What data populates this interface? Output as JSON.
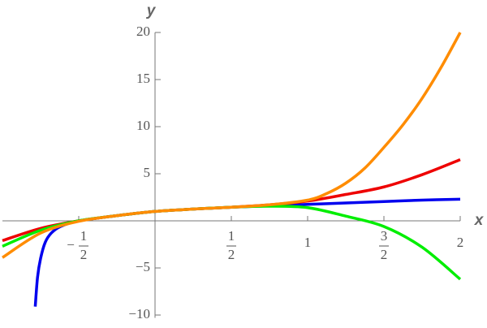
{
  "chart_data": {
    "type": "line",
    "x_label": "x",
    "y_label": "y",
    "xlim": [
      -1,
      2
    ],
    "ylim": [
      -10.3,
      20
    ],
    "xticks": [
      {
        "value": -0.5,
        "label": "-1/2"
      },
      {
        "value": 0.5,
        "label": "1/2"
      },
      1,
      {
        "value": 1.5,
        "label": "3/2"
      },
      2
    ],
    "yticks": [
      -10,
      -5,
      5,
      10,
      15,
      20
    ],
    "series": [
      {
        "color": "#0000ee",
        "x": [
          -0.785,
          -0.77,
          -0.75,
          -0.72,
          -0.68,
          -0.62,
          -0.5,
          -0.25,
          0,
          0.25,
          0.5,
          0.75,
          1,
          1.25,
          1.5,
          1.75,
          2
        ],
        "values": [
          -9.1,
          -6,
          -4,
          -2.3,
          -1.3,
          -0.6,
          0,
          0.55,
          1,
          1.25,
          1.45,
          1.6,
          1.75,
          1.9,
          2.05,
          2.2,
          2.3
        ]
      },
      {
        "color": "#ee0000",
        "x": [
          -1,
          -0.75,
          -0.5,
          -0.25,
          0,
          0.25,
          0.5,
          0.75,
          1,
          1.25,
          1.5,
          1.75,
          2
        ],
        "values": [
          -2.1,
          -0.8,
          0,
          0.55,
          1,
          1.25,
          1.45,
          1.7,
          2.1,
          2.8,
          3.6,
          4.9,
          6.5
        ]
      },
      {
        "color": "#00ee00",
        "x": [
          -1,
          -0.75,
          -0.5,
          -0.25,
          0,
          0.25,
          0.5,
          0.75,
          1,
          1.25,
          1.5,
          1.75,
          2
        ],
        "values": [
          -2.7,
          -1,
          0,
          0.55,
          1,
          1.25,
          1.45,
          1.55,
          1.4,
          0.5,
          -0.6,
          -2.8,
          -6.2
        ]
      },
      {
        "color": "#ff8c00",
        "x": [
          -1,
          -0.75,
          -0.5,
          -0.25,
          0,
          0.25,
          0.5,
          0.75,
          1,
          1.125,
          1.25,
          1.375,
          1.5,
          1.625,
          1.75,
          1.875,
          2
        ],
        "values": [
          -3.9,
          -1.3,
          -0.05,
          0.55,
          1,
          1.25,
          1.45,
          1.7,
          2.2,
          2.9,
          4,
          5.6,
          7.8,
          10.2,
          13,
          16.3,
          20
        ]
      }
    ]
  }
}
